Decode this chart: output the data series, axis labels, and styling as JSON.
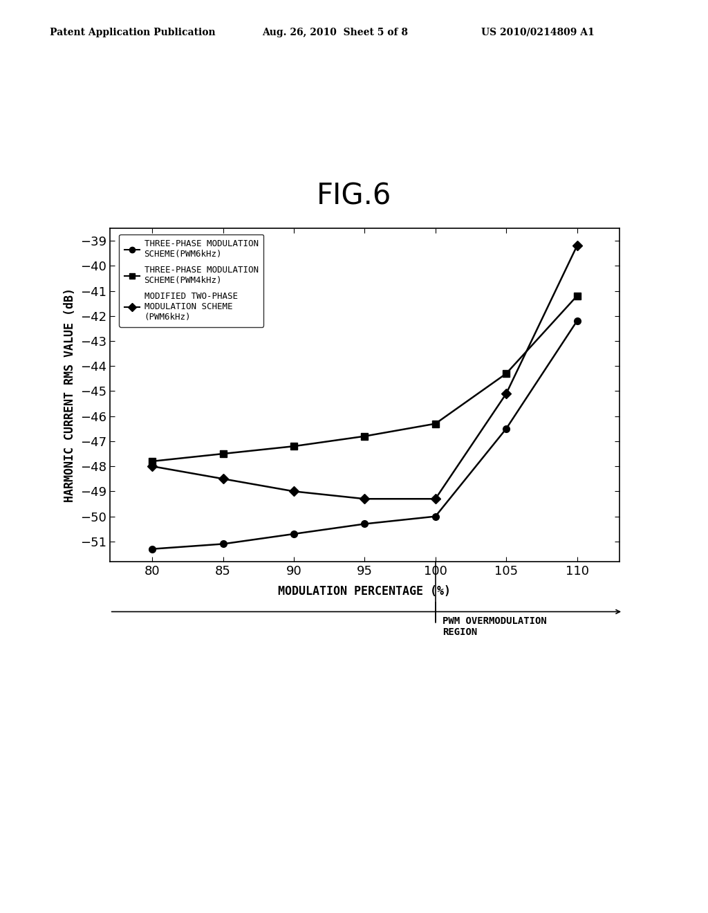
{
  "title": "FIG.6",
  "header_left": "Patent Application Publication",
  "header_center": "Aug. 26, 2010  Sheet 5 of 8",
  "header_right": "US 2010/0214809 A1",
  "xlabel": "MODULATION PERCENTAGE (%)",
  "ylabel": "HARMONIC CURRENT RMS VALUE (dB)",
  "xlim": [
    77,
    113
  ],
  "ylim": [
    -51.8,
    -38.5
  ],
  "xticks": [
    80,
    85,
    90,
    95,
    100,
    105,
    110
  ],
  "yticks": [
    -51,
    -50,
    -49,
    -48,
    -47,
    -46,
    -45,
    -44,
    -43,
    -42,
    -41,
    -40,
    -39
  ],
  "x_data": [
    80,
    85,
    90,
    95,
    100,
    105,
    110
  ],
  "series1_y": [
    -51.3,
    -51.1,
    -50.7,
    -50.3,
    -50.0,
    -46.5,
    -42.2
  ],
  "series2_y": [
    -47.8,
    -47.5,
    -47.2,
    -46.8,
    -46.3,
    -44.3,
    -41.2
  ],
  "series3_y": [
    -48.0,
    -48.5,
    -49.0,
    -49.3,
    -49.3,
    -45.1,
    -39.2
  ],
  "legend1_text": "THREE-PHASE MODULATION\nSCHEME(PWM6kHz)",
  "legend2_text": "THREE-PHASE MODULATION\nSCHEME(PWM4kHz)",
  "legend3_text": "MODIFIED TWO-PHASE\nMODULATION SCHEME\n(PWM6kHz)",
  "overmodulation_label": "PWM OVERMODULATION\nREGION",
  "bg_color": "#ffffff",
  "line_color": "#000000",
  "title_fontsize": 30,
  "tick_fontsize": 13,
  "label_fontsize": 12,
  "legend_fontsize": 9,
  "header_fontsize": 10
}
